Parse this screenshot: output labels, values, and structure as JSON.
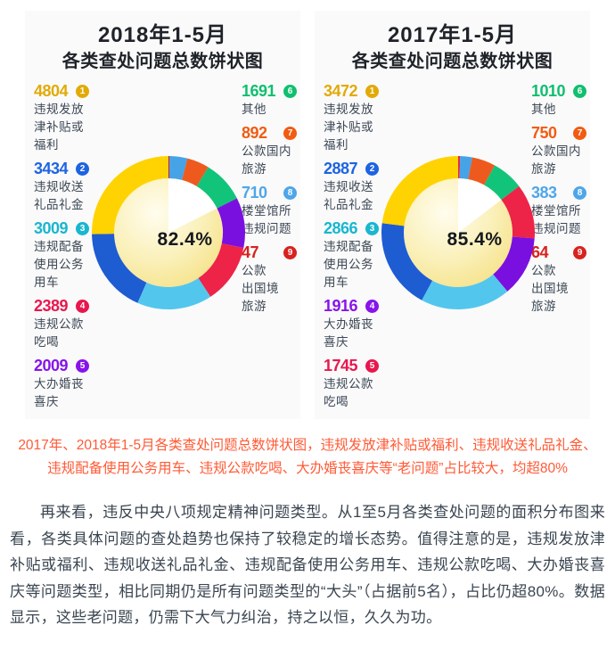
{
  "charts": [
    {
      "title_line1": "2018年1-5月",
      "title_line2": "各类查处问题总数饼状图",
      "center_label": "82.4%",
      "items": [
        {
          "num": 1,
          "value": 4804,
          "label": "违规发放\n津补贴或\n福利",
          "color": "#e2aa06",
          "slice": "#ffd301"
        },
        {
          "num": 2,
          "value": 3434,
          "label": "违规收送\n礼品礼金",
          "color": "#1d64e2",
          "slice": "#1e5cd2"
        },
        {
          "num": 3,
          "value": 3009,
          "label": "违规配备\n使用公务\n用车",
          "color": "#19b6cf",
          "slice": "#53c6ee"
        },
        {
          "num": 4,
          "value": 2389,
          "label": "违规公款\n吃喝",
          "color": "#e8174d",
          "slice": "#ee2348"
        },
        {
          "num": 5,
          "value": 2009,
          "label": "大办婚丧\n喜庆",
          "color": "#8714ea",
          "slice": "#7a10e0"
        },
        {
          "num": 6,
          "value": 1691,
          "label": "其他",
          "color": "#0fbf6f",
          "slice": "#12c479"
        },
        {
          "num": 7,
          "value": 892,
          "label": "公款国内\n旅游",
          "color": "#f25b11",
          "slice": "#ee5a1e"
        },
        {
          "num": 8,
          "value": 710,
          "label": "楼堂馆所\n违规问题",
          "color": "#4ea6e9",
          "slice": "#46a3e6"
        },
        {
          "num": 9,
          "value": 47,
          "label": "公款\n出国境\n旅游",
          "color": "#d8221f",
          "slice": "#c01f2f"
        }
      ]
    },
    {
      "title_line1": "2017年1-5月",
      "title_line2": "各类查处问题总数饼状图",
      "center_label": "85.4%",
      "items": [
        {
          "num": 1,
          "value": 3472,
          "label": "违规发放\n津补贴或\n福利",
          "color": "#e2aa06",
          "slice": "#ffd301"
        },
        {
          "num": 2,
          "value": 2887,
          "label": "违规收送\n礼品礼金",
          "color": "#1d64e2",
          "slice": "#1e5cd2"
        },
        {
          "num": 3,
          "value": 2866,
          "label": "违规配备\n使用公务\n用车",
          "color": "#19b6cf",
          "slice": "#53c6ee"
        },
        {
          "num": 4,
          "value": 1916,
          "label": "大办婚丧\n喜庆",
          "color": "#8714ea",
          "slice": "#7a10e0"
        },
        {
          "num": 5,
          "value": 1745,
          "label": "违规公款\n吃喝",
          "color": "#e8174d",
          "slice": "#ee2348"
        },
        {
          "num": 6,
          "value": 1010,
          "label": "其他",
          "color": "#0fbf6f",
          "slice": "#12c479"
        },
        {
          "num": 7,
          "value": 750,
          "label": "公款国内\n旅游",
          "color": "#f25b11",
          "slice": "#ee5a1e"
        },
        {
          "num": 8,
          "value": 383,
          "label": "楼堂馆所\n违规问题",
          "color": "#4ea6e9",
          "slice": "#46a3e6"
        },
        {
          "num": 9,
          "value": 64,
          "label": "公款\n出国境\n旅游",
          "color": "#d8221f",
          "slice": "#e42a45"
        }
      ]
    }
  ],
  "chart_data": [
    {
      "type": "pie",
      "title": "2018年1-5月各类查处问题总数饼状图",
      "center_label": "82.4%",
      "categories": [
        "违规发放津补贴或福利",
        "违规收送礼品礼金",
        "违规配备使用公务用车",
        "违规公款吃喝",
        "大办婚丧喜庆",
        "其他",
        "公款国内旅游",
        "楼堂馆所违规问题",
        "公款出国境旅游"
      ],
      "values": [
        4804,
        3434,
        3009,
        2389,
        2009,
        1691,
        892,
        710,
        47
      ],
      "colors": [
        "#ffd301",
        "#1e5cd2",
        "#53c6ee",
        "#ee2348",
        "#7a10e0",
        "#12c479",
        "#ee5a1e",
        "#46a3e6",
        "#c01f2f"
      ],
      "legend_position": "flanking-sides",
      "layout": "donut, slices ascending by value clockwise from 12 o'clock; inner pie shows top-5 share 82.4% in pale yellow vs white remainder"
    },
    {
      "type": "pie",
      "title": "2017年1-5月各类查处问题总数饼状图",
      "center_label": "85.4%",
      "categories": [
        "违规发放津补贴或福利",
        "违规收送礼品礼金",
        "违规配备使用公务用车",
        "大办婚丧喜庆",
        "违规公款吃喝",
        "其他",
        "公款国内旅游",
        "楼堂馆所违规问题",
        "公款出国境旅游"
      ],
      "values": [
        3472,
        2887,
        2866,
        1916,
        1745,
        1010,
        750,
        383,
        64
      ],
      "colors": [
        "#ffd301",
        "#1e5cd2",
        "#53c6ee",
        "#7a10e0",
        "#ee2348",
        "#12c479",
        "#ee5a1e",
        "#46a3e6",
        "#e42a45"
      ],
      "legend_position": "flanking-sides",
      "layout": "donut, slices ascending by value clockwise from 12 o'clock; inner pie shows top-5 share 85.4% in pale yellow vs white remainder"
    }
  ],
  "caption": {
    "color": "#ff5a36",
    "line1": "2017年、2018年1-5月各类查处问题总数饼状图，违规发放津补贴或福利、违规收送礼品礼金、",
    "line2": "违规配备使用公务用车、违规公款吃喝、大办婚丧喜庆等“老问题”占比较大，均超80%"
  },
  "article": {
    "text": "再来看，违反中央八项规定精神问题类型。从1至5月各类查处问题的面积分布图来看，各类具体问题的查处趋势也保持了较稳定的增长态势。值得注意的是，违规发放津补贴或福利、违规收送礼品礼金、违规配备使用公务用车、违规公款吃喝、大办婚丧喜庆等问题类型，相比同期仍是所有问题类型的“大头”（占据前5名），占比仍超80%。数据显示，这些老问题，仍需下大气力纠治，持之以恒，久久为功。"
  },
  "theme": {
    "card_bg": "#fafafa",
    "page_bg": "#ffffff",
    "title_color": "#1f2329",
    "label_color": "#3d4856",
    "pie_gradient_inner": "#fffdee",
    "pie_gradient_outer": "#f5e184"
  }
}
